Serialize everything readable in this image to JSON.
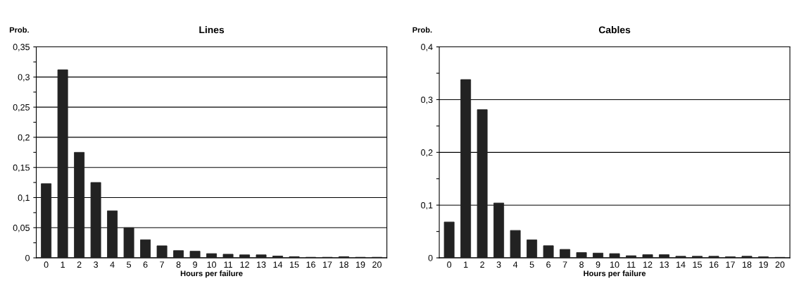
{
  "chart_data": [
    {
      "type": "bar",
      "title": "Lines",
      "xlabel": "Hours per failure",
      "ylabel": "Prob.",
      "categories": [
        "0",
        "1",
        "2",
        "3",
        "4",
        "5",
        "6",
        "7",
        "8",
        "9",
        "10",
        "11",
        "12",
        "13",
        "14",
        "15",
        "16",
        "17",
        "18",
        "19",
        "20"
      ],
      "values": [
        0.123,
        0.312,
        0.175,
        0.125,
        0.078,
        0.05,
        0.03,
        0.02,
        0.012,
        0.011,
        0.007,
        0.006,
        0.005,
        0.005,
        0.003,
        0.002,
        0.001,
        0.001,
        0.002,
        0.001,
        0.001
      ],
      "color": "#222222",
      "ylim": [
        0,
        0.35
      ],
      "yticks": [
        {
          "value": 0,
          "label": "0"
        },
        {
          "value": 0.025,
          "label": null
        },
        {
          "value": 0.05,
          "label": "0,05"
        },
        {
          "value": 0.075,
          "label": null
        },
        {
          "value": 0.1,
          "label": "0,1"
        },
        {
          "value": 0.125,
          "label": null
        },
        {
          "value": 0.15,
          "label": "0,15"
        },
        {
          "value": 0.175,
          "label": null
        },
        {
          "value": 0.2,
          "label": "0,2"
        },
        {
          "value": 0.225,
          "label": null
        },
        {
          "value": 0.25,
          "label": "0,25"
        },
        {
          "value": 0.275,
          "label": null
        },
        {
          "value": 0.3,
          "label": "0,3"
        },
        {
          "value": 0.325,
          "label": null
        },
        {
          "value": 0.35,
          "label": "0,35"
        }
      ],
      "grid": "y"
    },
    {
      "type": "bar",
      "title": "Cables",
      "xlabel": "Hours per failure",
      "ylabel": "Prob.",
      "categories": [
        "0",
        "1",
        "2",
        "3",
        "4",
        "5",
        "6",
        "7",
        "8",
        "9",
        "10",
        "11",
        "12",
        "13",
        "14",
        "15",
        "16",
        "17",
        "18",
        "19",
        "20"
      ],
      "values": [
        0.068,
        0.338,
        0.281,
        0.104,
        0.052,
        0.034,
        0.023,
        0.016,
        0.01,
        0.009,
        0.008,
        0.004,
        0.006,
        0.006,
        0.003,
        0.003,
        0.003,
        0.002,
        0.003,
        0.002,
        0.001
      ],
      "color": "#222222",
      "ylim": [
        0,
        0.4
      ],
      "yticks": [
        {
          "value": 0,
          "label": "0"
        },
        {
          "value": 0.05,
          "label": null
        },
        {
          "value": 0.1,
          "label": "0,1"
        },
        {
          "value": 0.15,
          "label": null
        },
        {
          "value": 0.2,
          "label": "0,2"
        },
        {
          "value": 0.25,
          "label": null
        },
        {
          "value": 0.3,
          "label": "0,3"
        },
        {
          "value": 0.35,
          "label": null
        },
        {
          "value": 0.4,
          "label": "0,4"
        }
      ],
      "grid": "y"
    }
  ]
}
